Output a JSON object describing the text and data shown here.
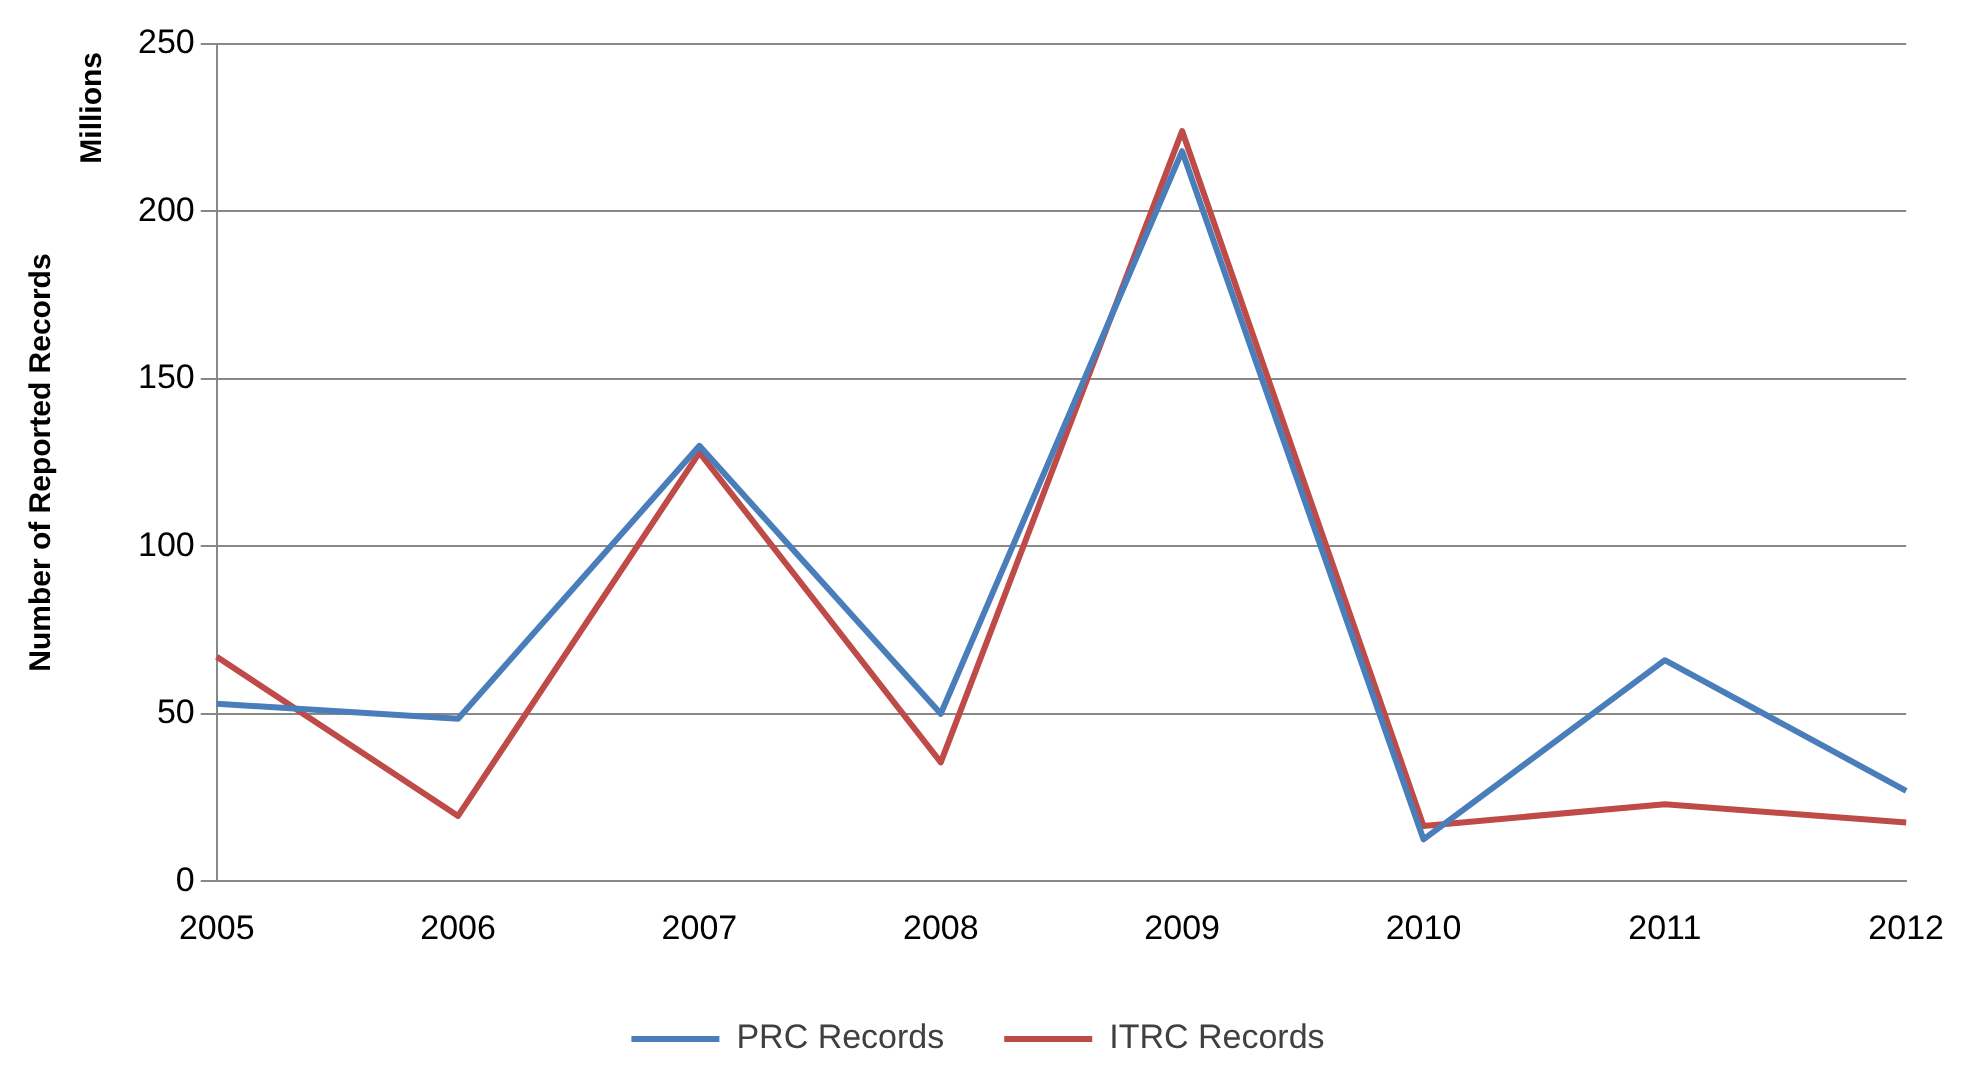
{
  "chart_data": {
    "type": "line",
    "ylabel": "Number of Reported Records",
    "annotations": [
      "Millions"
    ],
    "categories": [
      "2005",
      "2006",
      "2007",
      "2008",
      "2009",
      "2010",
      "2011",
      "2012"
    ],
    "series": [
      {
        "name": "PRC Records",
        "color": "#4a7ebb",
        "values": [
          53,
          48.5,
          130,
          50,
          218,
          12.5,
          66,
          27
        ]
      },
      {
        "name": "ITRC Records",
        "color": "#be4b48",
        "values": [
          67,
          19.5,
          128,
          35.5,
          224,
          16.5,
          23,
          17.5
        ]
      }
    ],
    "ylim": [
      0,
      250
    ],
    "yticks": [
      0,
      50,
      100,
      150,
      200,
      250
    ],
    "grid": "y",
    "legend": "bottom",
    "marker": "none",
    "line_style": "solid"
  }
}
